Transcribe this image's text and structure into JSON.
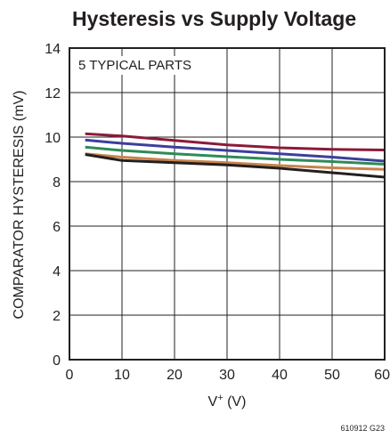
{
  "chart_data": {
    "type": "line",
    "title": "Hysteresis vs Supply Voltage",
    "xlabel": {
      "main": "V",
      "sup": "+",
      "unit": " (V)"
    },
    "ylabel": "COMPARATOR HYSTERESIS (mV)",
    "xlim": [
      0,
      60
    ],
    "ylim": [
      0,
      14
    ],
    "xticks": [
      0,
      10,
      20,
      30,
      40,
      50,
      60
    ],
    "yticks": [
      0,
      2,
      4,
      6,
      8,
      10,
      12,
      14
    ],
    "grid": true,
    "legend": "none",
    "annotation": "5 TYPICAL PARTS",
    "figure_id": "610912 G23",
    "series": [
      {
        "color": "#8b1a3a",
        "x": [
          3,
          10,
          20,
          30,
          40,
          50,
          60
        ],
        "values": [
          10.15,
          10.05,
          9.85,
          9.65,
          9.52,
          9.45,
          9.42
        ]
      },
      {
        "color": "#3b3f9c",
        "x": [
          3,
          10,
          20,
          30,
          40,
          50,
          60
        ],
        "values": [
          9.87,
          9.72,
          9.55,
          9.4,
          9.25,
          9.1,
          8.92
        ]
      },
      {
        "color": "#2e8b57",
        "x": [
          3,
          10,
          20,
          30,
          40,
          50,
          60
        ],
        "values": [
          9.55,
          9.4,
          9.25,
          9.12,
          9.0,
          8.9,
          8.78
        ]
      },
      {
        "color": "#c8834a",
        "x": [
          3,
          10,
          20,
          30,
          40,
          50,
          60
        ],
        "values": [
          9.25,
          9.1,
          8.95,
          8.85,
          8.72,
          8.62,
          8.55
        ]
      },
      {
        "color": "#231f20",
        "x": [
          3,
          10,
          20,
          30,
          40,
          50,
          60
        ],
        "values": [
          9.22,
          8.95,
          8.85,
          8.75,
          8.6,
          8.4,
          8.2
        ]
      }
    ]
  }
}
